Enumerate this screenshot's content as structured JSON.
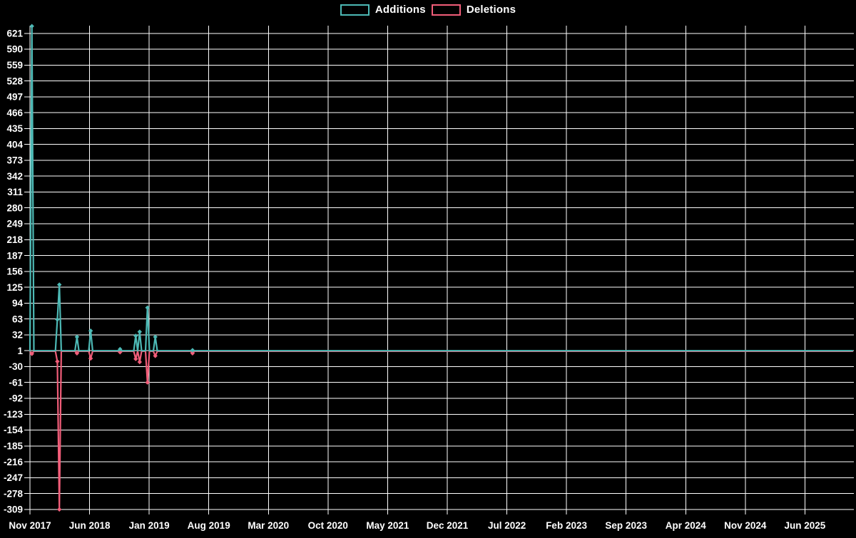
{
  "legend": {
    "items": [
      {
        "label": "Additions",
        "color": "#4db9b5"
      },
      {
        "label": "Deletions",
        "color": "#f15d79"
      }
    ]
  },
  "chart_data": {
    "type": "line",
    "title": "",
    "legend_position": "top-center",
    "background": "#000000",
    "grid": {
      "show": true,
      "color": "#ffffff"
    },
    "x_axis": {
      "unit": "weeks",
      "tick_labels": [
        "Nov 2017",
        "Jun 2018",
        "Jan 2019",
        "Aug 2019",
        "Mar 2020",
        "Oct 2020",
        "May 2021",
        "Dec 2021",
        "Jul 2022",
        "Feb 2023",
        "Sep 2023",
        "Apr 2024",
        "Nov 2024",
        "Jun 2025"
      ],
      "months_per_tick": 7,
      "weeks_total": 420
    },
    "y_axis": {
      "max_label": 621,
      "min_label": -309,
      "step": 31,
      "ticks": [
        621,
        590,
        559,
        528,
        497,
        466,
        435,
        404,
        373,
        342,
        311,
        280,
        249,
        218,
        187,
        156,
        125,
        94,
        63,
        32,
        1,
        -30,
        -61,
        -92,
        -123,
        -154,
        -185,
        -216,
        -247,
        -278,
        -309
      ]
    },
    "series": [
      {
        "name": "Deletions",
        "color": "#f15d79",
        "baseline_value": 0,
        "spikes": [
          {
            "week": 1,
            "approx_date": "Nov 2017",
            "value": -5
          },
          {
            "week": 14,
            "approx_date": "Feb 2018",
            "value": -20
          },
          {
            "week": 15,
            "approx_date": "Feb 2018",
            "value": -309
          },
          {
            "week": 24,
            "approx_date": "Apr 2018",
            "value": -4
          },
          {
            "week": 31,
            "approx_date": "Jun 2018",
            "value": -14
          },
          {
            "week": 46,
            "approx_date": "Sep 2018",
            "value": -2
          },
          {
            "week": 54,
            "approx_date": "Nov 2018",
            "value": -15
          },
          {
            "week": 56,
            "approx_date": "Dec 2018",
            "value": -21
          },
          {
            "week": 60,
            "approx_date": "Jan 2019",
            "value": -61
          },
          {
            "week": 64,
            "approx_date": "Feb 2019",
            "value": -9
          },
          {
            "week": 83,
            "approx_date": "Jun 2019",
            "value": -4
          }
        ]
      },
      {
        "name": "Additions",
        "color": "#4db9b5",
        "baseline_value": 1,
        "spikes": [
          {
            "week": 1,
            "approx_date": "Nov 2017",
            "value": 635
          },
          {
            "week": 14,
            "approx_date": "Feb 2018",
            "value": 62
          },
          {
            "week": 15,
            "approx_date": "Feb 2018",
            "value": 130
          },
          {
            "week": 24,
            "approx_date": "Apr 2018",
            "value": 28
          },
          {
            "week": 31,
            "approx_date": "Jun 2018",
            "value": 40
          },
          {
            "week": 46,
            "approx_date": "Sep 2018",
            "value": 4
          },
          {
            "week": 54,
            "approx_date": "Nov 2018",
            "value": 30
          },
          {
            "week": 56,
            "approx_date": "Dec 2018",
            "value": 38
          },
          {
            "week": 60,
            "approx_date": "Jan 2019",
            "value": 85
          },
          {
            "week": 64,
            "approx_date": "Feb 2019",
            "value": 28
          },
          {
            "week": 83,
            "approx_date": "Jun 2019",
            "value": 2
          }
        ]
      }
    ]
  }
}
